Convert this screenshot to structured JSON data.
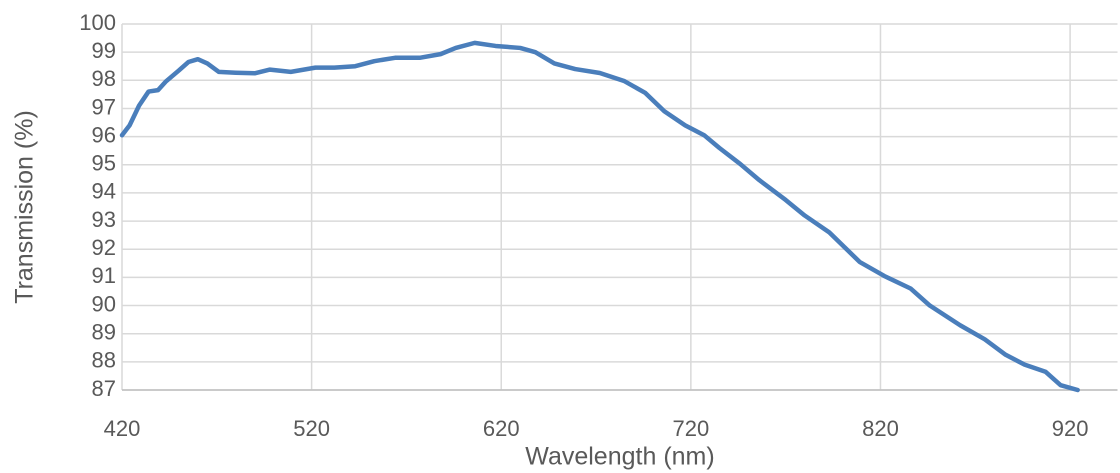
{
  "chart_data": {
    "type": "line",
    "x_label": "Wavelength (nm)",
    "y_label": "Transmission (%)",
    "xlim": [
      420,
      945
    ],
    "xticks": [
      420,
      520,
      620,
      720,
      820,
      920
    ],
    "ylim": [
      87,
      100
    ],
    "yticks": [
      87,
      88,
      89,
      90,
      91,
      92,
      93,
      94,
      95,
      96,
      97,
      98,
      99,
      100
    ],
    "grid": true,
    "series": [
      {
        "color": "#4a7ebb",
        "x": [
          420,
          424,
          429,
          434,
          439,
          443,
          450,
          455,
          460,
          465,
          471,
          480,
          490,
          498,
          509,
          522,
          532,
          543,
          553,
          564,
          577,
          588,
          596,
          606,
          617,
          630,
          638,
          648,
          659,
          672,
          685,
          696,
          706,
          717,
          727,
          735,
          746,
          756,
          770,
          780,
          793,
          809,
          822,
          836,
          846,
          862,
          875,
          886,
          896,
          907,
          915,
          924
        ],
        "values": [
          96.05,
          96.4,
          97.1,
          97.6,
          97.65,
          97.95,
          98.35,
          98.65,
          98.75,
          98.6,
          98.3,
          98.27,
          98.25,
          98.38,
          98.3,
          98.45,
          98.45,
          98.5,
          98.68,
          98.8,
          98.8,
          98.93,
          99.15,
          99.33,
          99.22,
          99.15,
          99.0,
          98.6,
          98.4,
          98.26,
          97.97,
          97.55,
          96.9,
          96.4,
          96.05,
          95.6,
          95.03,
          94.46,
          93.75,
          93.2,
          92.6,
          91.55,
          91.05,
          90.6,
          90.0,
          89.3,
          88.8,
          88.25,
          87.9,
          87.65,
          87.17,
          87.0
        ]
      }
    ]
  }
}
